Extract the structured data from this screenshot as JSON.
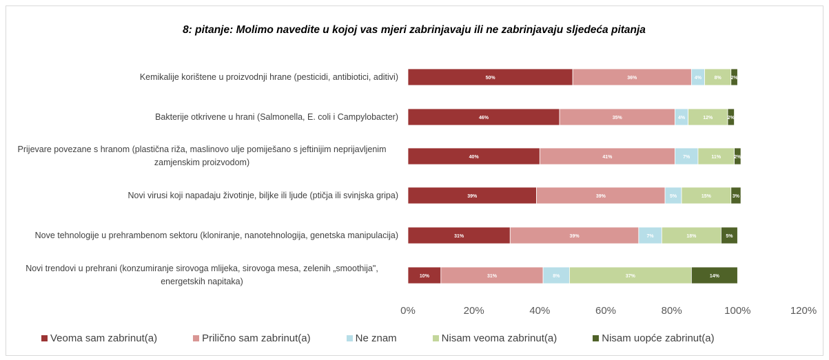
{
  "chart_data": {
    "type": "stacked_barh",
    "title": "8: pitanje: Molimo navedite u kojoj vas mjeri zabrinjavaju ili ne zabrinjavaju sljedeća pitanja",
    "categories": [
      "Kemikalije korištene u proizvodnji hrane (pesticidi, antibiotici, aditivi)",
      "Bakterije otkrivene u hrani (Salmonella, E. coli i Campylobacter)",
      "Prijevare povezane s hranom (plastična riža, maslinovo ulje pomiješano s jeftinijim neprijavljenim zamjenskim proizvodom)",
      "Novi virusi koji napadaju životinje, biljke ili ljude (ptičja ili svinjska gripa)",
      "Nove tehnologije u prehrambenom sektoru (kloniranje, nanotehnologija, genetska manipulacija)",
      "Novi trendovi u prehrani (konzumiranje sirovoga mlijeka, sirovoga mesa, zelenih „smoothija\", energetskih napitaka)"
    ],
    "series": [
      {
        "name": "Veoma sam zabrinut(a)",
        "color": "#9b3434",
        "values": [
          50,
          46,
          40,
          39,
          31,
          10
        ],
        "value_labels": [
          "50%",
          "46%",
          "40%",
          "39%",
          "31%",
          "10%"
        ]
      },
      {
        "name": "Prilično sam zabrinut(a)",
        "color": "#d99694",
        "values": [
          36,
          35,
          41,
          39,
          39,
          31
        ],
        "value_labels": [
          "36%",
          "35%",
          "41%",
          "39%",
          "39%",
          "31%"
        ]
      },
      {
        "name": "Ne znam",
        "color": "#b7dee8",
        "values": [
          4,
          4,
          7,
          5,
          7,
          8
        ],
        "value_labels": [
          "4%",
          "4%",
          "7%",
          "5%",
          "7%",
          "8%"
        ]
      },
      {
        "name": "Nisam veoma zabrinut(a)",
        "color": "#c3d69b",
        "values": [
          8,
          12,
          11,
          15,
          18,
          37
        ],
        "value_labels": [
          "8%",
          "12%",
          "11%",
          "15%",
          "18%",
          "37%"
        ]
      },
      {
        "name": "Nisam uopće zabrinut(a)",
        "color": "#4f6228",
        "values": [
          2,
          2,
          2,
          3,
          5,
          14
        ],
        "value_labels": [
          "2%",
          "2%",
          "2%",
          "3%",
          "5%",
          "14%"
        ]
      }
    ],
    "xlim": [
      0,
      120
    ],
    "xticks": [
      {
        "value": 0,
        "label": "0%"
      },
      {
        "value": 20,
        "label": "20%"
      },
      {
        "value": 40,
        "label": "40%"
      },
      {
        "value": 60,
        "label": "60%"
      },
      {
        "value": 80,
        "label": "80%"
      },
      {
        "value": 100,
        "label": "100%"
      },
      {
        "value": 120,
        "label": "120%"
      }
    ],
    "legend": "bottom"
  }
}
